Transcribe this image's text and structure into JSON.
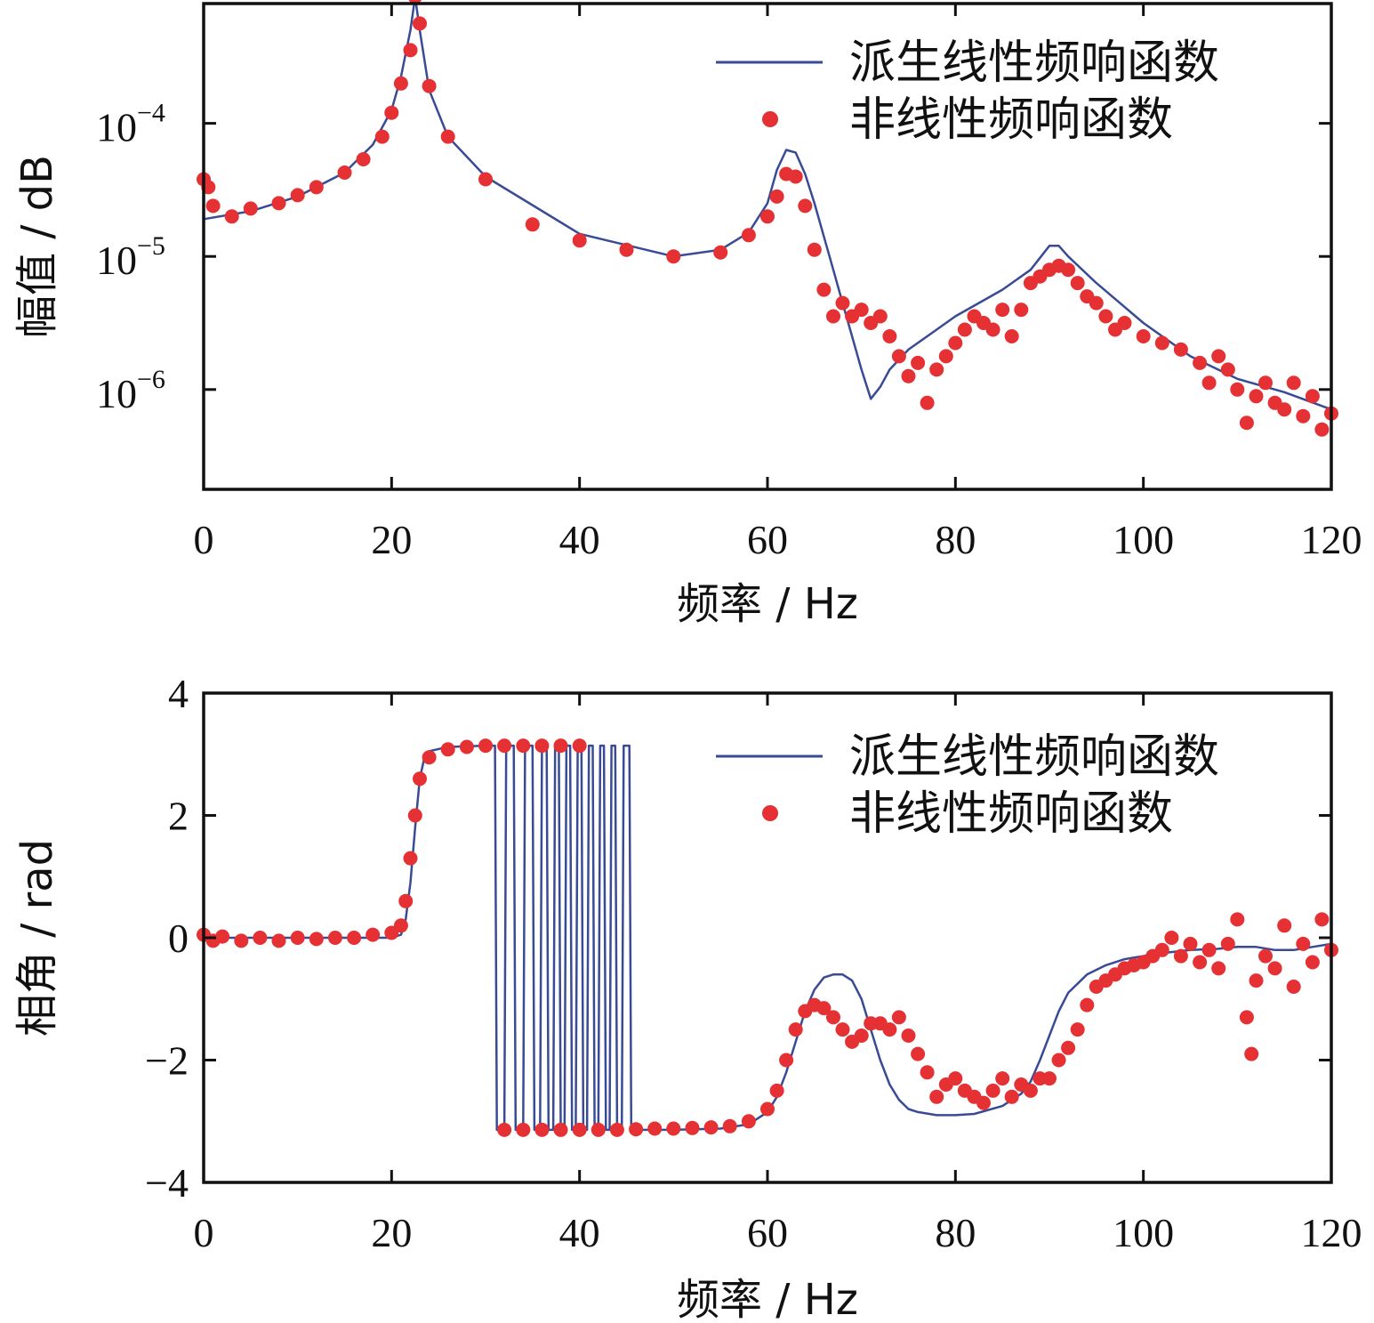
{
  "figure": {
    "colors": {
      "linear": "#3a4b96",
      "nonlinear": "#e53034",
      "axes": "#111111"
    }
  },
  "chart_data": [
    {
      "type": "line",
      "xlabel": "频率 / Hz",
      "ylabel": "幅值 / dB",
      "y_scale": "log",
      "xlim": [
        0,
        120
      ],
      "ylim_exponent": [
        -6.75,
        -3.1
      ],
      "xticks": [
        "0",
        "20",
        "40",
        "60",
        "80",
        "100",
        "120"
      ],
      "yticks": [
        {
          "base": "10",
          "exp": "−4",
          "value": -4
        },
        {
          "base": "10",
          "exp": "−5",
          "value": -5
        },
        {
          "base": "10",
          "exp": "−6",
          "value": -6
        }
      ],
      "legend": {
        "position": "top-right",
        "entries": [
          "派生线性频响函数",
          "非线性频响函数"
        ]
      },
      "series": [
        {
          "name": "派生线性频响函数",
          "style": "line",
          "x": [
            0,
            5,
            10,
            15,
            18,
            20,
            21,
            22,
            22.5,
            23,
            24,
            26,
            30,
            40,
            50,
            55,
            58,
            60,
            61,
            62,
            63,
            64,
            65,
            66,
            67,
            68,
            69,
            70,
            71,
            72,
            73,
            75,
            78,
            80,
            85,
            88,
            90,
            91,
            92,
            95,
            100,
            105,
            110,
            115,
            120
          ],
          "y_log10": [
            -4.72,
            -4.66,
            -4.55,
            -4.37,
            -4.16,
            -3.9,
            -3.65,
            -3.3,
            -3.05,
            -3.3,
            -3.75,
            -4.1,
            -4.4,
            -4.83,
            -5.0,
            -4.95,
            -4.82,
            -4.6,
            -4.35,
            -4.2,
            -4.22,
            -4.38,
            -4.6,
            -4.85,
            -5.1,
            -5.35,
            -5.6,
            -5.85,
            -6.07,
            -5.98,
            -5.85,
            -5.7,
            -5.55,
            -5.45,
            -5.25,
            -5.1,
            -4.92,
            -4.92,
            -5.0,
            -5.2,
            -5.5,
            -5.75,
            -5.92,
            -6.02,
            -6.15
          ]
        },
        {
          "name": "非线性频响函数",
          "style": "markers",
          "x": [
            0,
            0.5,
            1,
            3,
            5,
            8,
            10,
            12,
            15,
            17,
            19,
            20,
            21,
            22,
            22.5,
            23,
            24,
            26,
            30,
            35,
            40,
            45,
            50,
            55,
            58,
            60,
            61,
            62,
            63,
            64,
            65,
            66,
            67,
            68,
            69,
            70,
            71,
            72,
            73,
            74,
            75,
            76,
            77,
            78,
            79,
            80,
            81,
            82,
            83,
            84,
            85,
            86,
            87,
            88,
            89,
            90,
            91,
            92,
            93,
            94,
            95,
            96,
            97,
            98,
            100,
            102,
            104,
            106,
            107,
            108,
            109,
            110,
            111,
            112,
            113,
            114,
            115,
            116,
            117,
            118,
            119,
            120
          ],
          "y_log10": [
            -4.42,
            -4.48,
            -4.62,
            -4.7,
            -4.64,
            -4.6,
            -4.54,
            -4.48,
            -4.37,
            -4.27,
            -4.1,
            -3.92,
            -3.7,
            -3.45,
            -3.05,
            -3.25,
            -3.72,
            -4.1,
            -4.42,
            -4.76,
            -4.88,
            -4.95,
            -5.0,
            -4.97,
            -4.84,
            -4.7,
            -4.55,
            -4.38,
            -4.4,
            -4.62,
            -4.95,
            -5.25,
            -5.45,
            -5.35,
            -5.45,
            -5.4,
            -5.5,
            -5.45,
            -5.6,
            -5.75,
            -5.9,
            -5.8,
            -6.1,
            -5.85,
            -5.75,
            -5.65,
            -5.55,
            -5.45,
            -5.5,
            -5.55,
            -5.4,
            -5.6,
            -5.4,
            -5.2,
            -5.15,
            -5.1,
            -5.07,
            -5.1,
            -5.2,
            -5.3,
            -5.35,
            -5.45,
            -5.55,
            -5.5,
            -5.6,
            -5.65,
            -5.7,
            -5.8,
            -5.95,
            -5.75,
            -5.85,
            -6.0,
            -6.25,
            -6.05,
            -5.95,
            -6.1,
            -6.15,
            -5.95,
            -6.2,
            -6.05,
            -6.3,
            -6.18
          ]
        }
      ]
    },
    {
      "type": "line",
      "xlabel": "频率 / Hz",
      "ylabel": "相角 / rad",
      "xlim": [
        0,
        120
      ],
      "ylim": [
        -4,
        4
      ],
      "xticks": [
        "0",
        "20",
        "40",
        "60",
        "80",
        "100",
        "120"
      ],
      "yticks": [
        {
          "label": "4",
          "value": 4
        },
        {
          "label": "2",
          "value": 2
        },
        {
          "label": "0",
          "value": 0
        },
        {
          "label": "−2",
          "value": -2
        },
        {
          "label": "−4",
          "value": -4
        }
      ],
      "legend": {
        "position": "top-right",
        "entries": [
          "派生线性频响函数",
          "非线性频响函数"
        ]
      },
      "series": [
        {
          "name": "派生线性频响函数",
          "style": "line",
          "x": [
            0,
            10,
            20,
            21,
            21.5,
            22,
            22.5,
            23,
            23.5,
            24,
            26,
            30,
            31,
            31.2,
            32,
            32.2,
            33,
            33.2,
            34,
            34.2,
            35,
            35.2,
            35.8,
            36,
            36.5,
            36.7,
            37.2,
            37.4,
            37.8,
            38,
            38.4,
            38.6,
            39,
            39.2,
            39.6,
            39.8,
            40.2,
            40.4,
            40.8,
            41,
            41.4,
            41.6,
            42,
            42.2,
            42.6,
            42.8,
            43.2,
            43.4,
            43.8,
            44,
            44.5,
            44.7,
            45.3,
            45.5,
            46,
            50,
            55,
            58,
            60,
            61,
            62,
            63,
            64,
            65,
            66,
            67,
            68,
            69,
            70,
            71,
            72,
            73,
            74,
            75,
            76,
            78,
            80,
            82,
            85,
            87,
            88,
            89,
            90,
            91,
            92,
            94,
            96,
            98,
            100,
            102,
            105,
            108,
            110,
            112,
            114,
            116,
            118,
            120
          ],
          "y": [
            0,
            0,
            0,
            0.05,
            0.3,
            0.9,
            1.8,
            2.6,
            2.95,
            3.05,
            3.12,
            3.14,
            3.14,
            -3.14,
            -3.14,
            3.14,
            3.14,
            -3.14,
            -3.14,
            3.14,
            3.14,
            -3.14,
            -3.14,
            3.14,
            3.14,
            -3.14,
            -3.14,
            3.14,
            3.14,
            -3.14,
            -3.14,
            3.14,
            3.14,
            -3.14,
            -3.14,
            3.14,
            3.14,
            -3.14,
            -3.14,
            3.14,
            3.14,
            -3.14,
            -3.14,
            3.14,
            3.14,
            -3.14,
            -3.14,
            3.14,
            3.14,
            -3.14,
            -3.14,
            3.14,
            3.14,
            -3.14,
            -3.14,
            -3.14,
            -3.12,
            -3.05,
            -2.85,
            -2.6,
            -2.2,
            -1.7,
            -1.2,
            -0.85,
            -0.65,
            -0.6,
            -0.6,
            -0.7,
            -1.0,
            -1.5,
            -2.0,
            -2.4,
            -2.65,
            -2.8,
            -2.85,
            -2.9,
            -2.9,
            -2.88,
            -2.75,
            -2.55,
            -2.35,
            -2.0,
            -1.6,
            -1.2,
            -0.9,
            -0.6,
            -0.45,
            -0.35,
            -0.3,
            -0.25,
            -0.2,
            -0.18,
            -0.15,
            -0.15,
            -0.2,
            -0.2,
            -0.15,
            -0.1
          ]
        },
        {
          "name": "非线性频响函数",
          "style": "markers",
          "x": [
            0,
            1,
            2,
            4,
            6,
            8,
            10,
            12,
            14,
            16,
            18,
            20,
            21,
            21.5,
            22,
            22.5,
            23,
            24,
            26,
            28,
            30,
            32,
            34,
            36,
            38,
            40,
            32,
            34,
            36,
            38,
            40,
            42,
            44,
            46,
            48,
            50,
            52,
            54,
            56,
            58,
            60,
            61,
            62,
            63,
            64,
            65,
            66,
            67,
            68,
            69,
            70,
            71,
            72,
            73,
            74,
            75,
            76,
            77,
            78,
            79,
            80,
            81,
            82,
            83,
            84,
            85,
            86,
            87,
            88,
            89,
            90,
            91,
            92,
            93,
            94,
            95,
            96,
            97,
            98,
            99,
            100,
            101,
            102,
            103,
            104,
            105,
            106,
            107,
            108,
            109,
            110,
            111,
            111.5,
            112,
            113,
            114,
            115,
            116,
            117,
            118,
            119,
            120
          ],
          "y": [
            0.05,
            -0.05,
            0.02,
            -0.05,
            0,
            -0.05,
            0,
            -0.02,
            0,
            0,
            0.05,
            0.08,
            0.2,
            0.6,
            1.3,
            2.0,
            2.6,
            2.95,
            3.08,
            3.12,
            3.14,
            3.14,
            3.14,
            3.14,
            3.14,
            3.14,
            -3.14,
            -3.14,
            -3.14,
            -3.14,
            -3.14,
            -3.14,
            -3.14,
            -3.13,
            -3.12,
            -3.12,
            -3.11,
            -3.1,
            -3.08,
            -3.0,
            -2.8,
            -2.5,
            -2.0,
            -1.5,
            -1.2,
            -1.1,
            -1.15,
            -1.3,
            -1.5,
            -1.7,
            -1.6,
            -1.4,
            -1.4,
            -1.5,
            -1.3,
            -1.6,
            -1.9,
            -2.2,
            -2.6,
            -2.4,
            -2.3,
            -2.5,
            -2.6,
            -2.7,
            -2.5,
            -2.3,
            -2.6,
            -2.4,
            -2.5,
            -2.3,
            -2.3,
            -2.0,
            -1.8,
            -1.5,
            -1.1,
            -0.8,
            -0.7,
            -0.6,
            -0.5,
            -0.45,
            -0.4,
            -0.3,
            -0.2,
            0,
            -0.3,
            -0.1,
            -0.4,
            -0.2,
            -0.5,
            -0.1,
            0.3,
            -1.3,
            -1.9,
            -0.7,
            -0.3,
            -0.5,
            0.2,
            -0.8,
            -0.1,
            -0.4,
            0.3,
            -0.2
          ]
        }
      ]
    }
  ]
}
